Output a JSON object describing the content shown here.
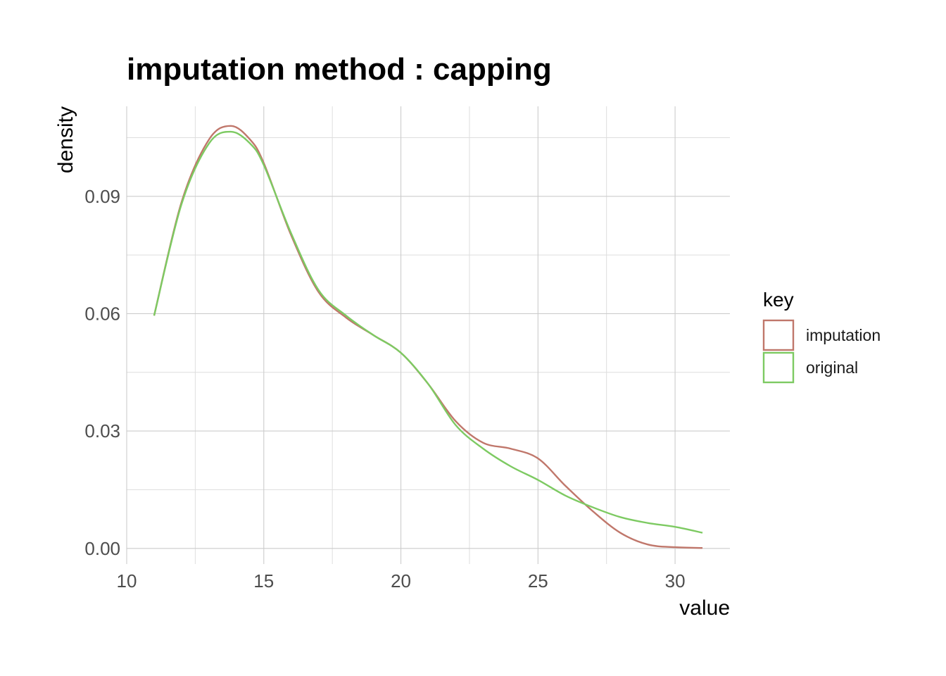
{
  "chart_data": {
    "type": "line",
    "title": "imputation method : capping",
    "xlabel": "value",
    "ylabel": "density",
    "xlim": [
      10,
      32
    ],
    "ylim": [
      -0.004,
      0.113
    ],
    "x_ticks": [
      10,
      15,
      20,
      25,
      30
    ],
    "x_tick_labels": [
      "10",
      "15",
      "20",
      "25",
      "30"
    ],
    "y_ticks": [
      0.0,
      0.03,
      0.06,
      0.09
    ],
    "y_tick_labels": [
      "0.00",
      "0.03",
      "0.06",
      "0.09"
    ],
    "grid": true,
    "legend": {
      "title": "key",
      "position": "right"
    },
    "series": [
      {
        "name": "imputation",
        "color": "#c0776b",
        "x": [
          11.0,
          12.0,
          13.0,
          13.8,
          14.5,
          15.0,
          16.0,
          17.0,
          18.0,
          19.0,
          20.0,
          21.0,
          22.0,
          23.0,
          24.0,
          25.0,
          26.0,
          27.0,
          28.0,
          29.0,
          30.0,
          31.0
        ],
        "y": [
          0.0595,
          0.0885,
          0.1045,
          0.108,
          0.1045,
          0.0985,
          0.08,
          0.0655,
          0.059,
          0.0545,
          0.05,
          0.042,
          0.0325,
          0.027,
          0.0255,
          0.023,
          0.016,
          0.0095,
          0.004,
          0.001,
          0.0003,
          0.0001
        ]
      },
      {
        "name": "original",
        "color": "#7dca62",
        "x": [
          11.0,
          12.0,
          13.0,
          13.8,
          14.5,
          15.0,
          16.0,
          17.0,
          18.0,
          19.0,
          20.0,
          21.0,
          22.0,
          23.0,
          24.0,
          25.0,
          26.0,
          27.0,
          28.0,
          29.0,
          30.0,
          31.0
        ],
        "y": [
          0.0595,
          0.088,
          0.1035,
          0.1065,
          0.1035,
          0.098,
          0.0805,
          0.066,
          0.0595,
          0.0545,
          0.05,
          0.042,
          0.0315,
          0.0255,
          0.021,
          0.0175,
          0.0135,
          0.0105,
          0.008,
          0.0065,
          0.0055,
          0.004
        ]
      }
    ]
  }
}
